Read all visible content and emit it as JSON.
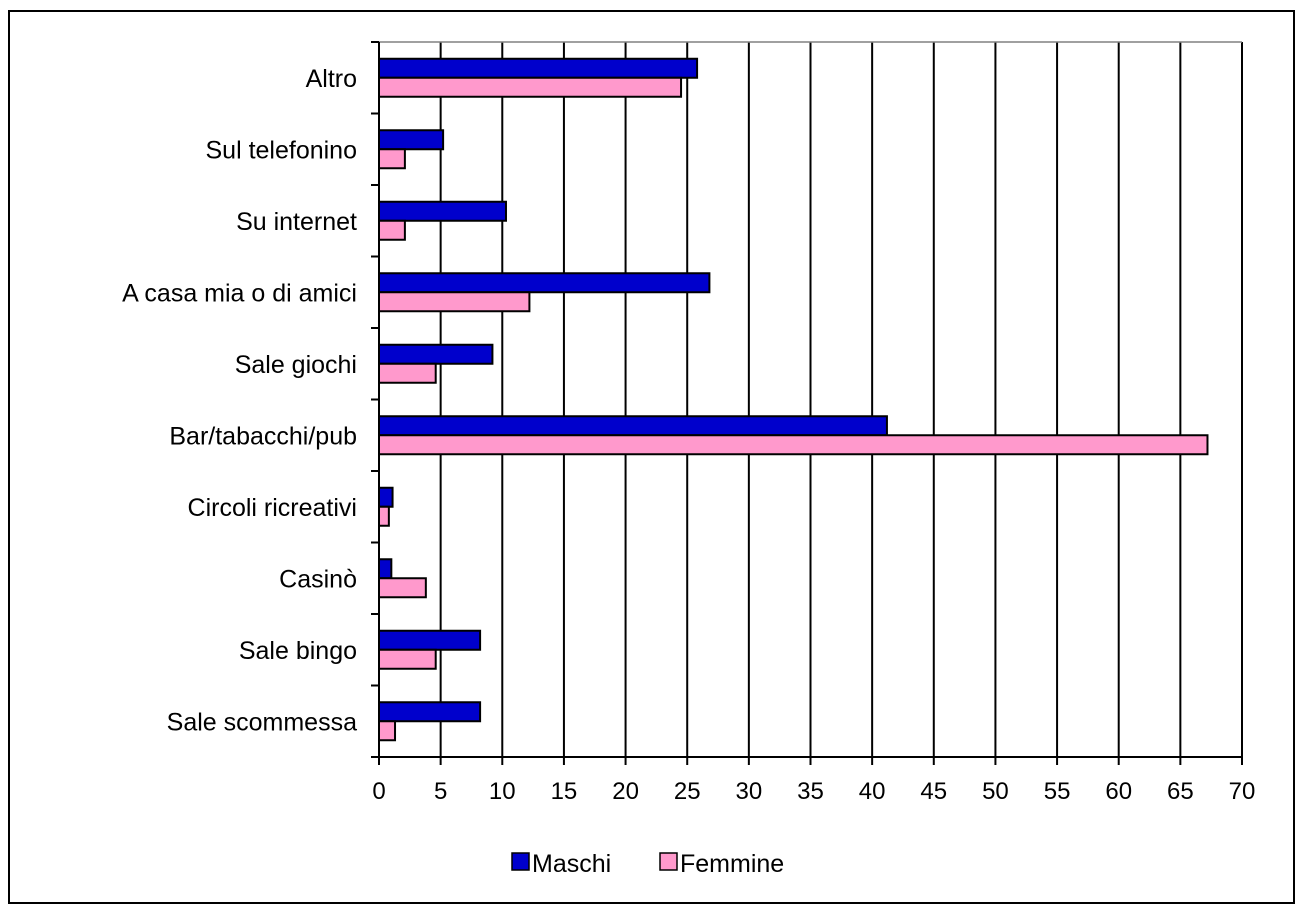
{
  "chart_data": {
    "type": "bar",
    "orientation": "horizontal",
    "categories": [
      "Altro",
      "Sul telefonino",
      "Su internet",
      "A casa mia o di amici",
      "Sale giochi",
      "Bar/tabacchi/pub",
      "Circoli ricreativi",
      "Casinò",
      "Sale bingo",
      "Sale scommessa"
    ],
    "series": [
      {
        "name": "Maschi",
        "color": "#0000CC",
        "values": [
          25.8,
          5.2,
          10.3,
          26.8,
          9.2,
          41.2,
          1.1,
          1.0,
          8.2,
          8.2
        ]
      },
      {
        "name": "Femmine",
        "color": "#FF99CC",
        "values": [
          24.5,
          2.1,
          2.1,
          12.2,
          4.6,
          67.2,
          0.8,
          3.8,
          4.6,
          1.3
        ]
      }
    ],
    "xlim": [
      0,
      70
    ],
    "xticks": [
      "0",
      "5",
      "10",
      "15",
      "20",
      "25",
      "30",
      "35",
      "40",
      "45",
      "50",
      "55",
      "60",
      "65",
      "70"
    ],
    "grid": "vertical",
    "legend_position": "bottom"
  }
}
